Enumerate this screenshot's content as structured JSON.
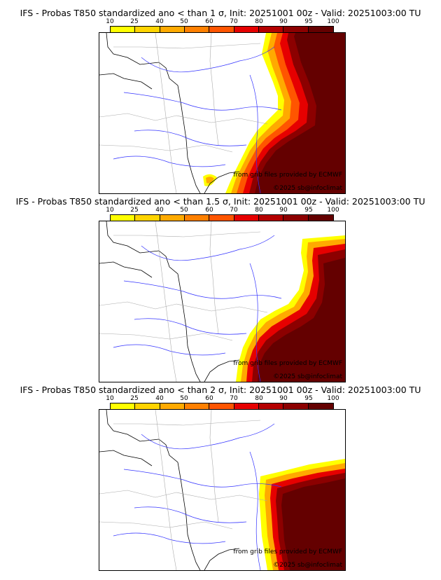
{
  "panels": [
    {
      "title": "IFS - Probas T850  standardized ano < than 1 σ, Init: 20251001 00z - Valid: 20251003:00 TU",
      "threshold": "1 σ"
    },
    {
      "title": "IFS - Probas T850  standardized ano < than 1.5 σ, Init: 20251001 00z - Valid: 20251003:00 TU",
      "threshold": "1.5 σ"
    },
    {
      "title": "IFS - Probas T850  standardized ano < than 2 σ, Init: 20251001 00z - Valid: 20251003:00 TU",
      "threshold": "2 σ"
    }
  ],
  "legend": {
    "labels": [
      "10",
      "25",
      "40",
      "50",
      "60",
      "70",
      "80",
      "90",
      "95",
      "100"
    ],
    "colors": [
      "#ffff00",
      "#ffd400",
      "#ffaa00",
      "#ff8000",
      "#ff5500",
      "#e60000",
      "#b40000",
      "#8c0000",
      "#640000"
    ]
  },
  "credits": {
    "source": "from grib files provided by ECMWF",
    "copyright": "©2025 sb@infoclimat"
  },
  "colors": {
    "coast": "#000000",
    "rivers": "#3333ff",
    "borders": "#aaaaaa"
  }
}
